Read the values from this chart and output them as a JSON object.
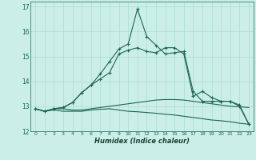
{
  "xlabel": "Humidex (Indice chaleur)",
  "background_color": "#cceee8",
  "grid_color": "#aaddcc",
  "line_color": "#1a6655",
  "x_values": [
    0,
    1,
    2,
    3,
    4,
    5,
    6,
    7,
    8,
    9,
    10,
    11,
    12,
    13,
    14,
    15,
    16,
    17,
    18,
    19,
    20,
    21,
    22,
    23
  ],
  "series": [
    {
      "y": [
        12.9,
        12.8,
        12.9,
        12.9,
        12.85,
        12.85,
        12.9,
        12.95,
        13.0,
        13.05,
        13.1,
        13.15,
        13.2,
        13.25,
        13.27,
        13.27,
        13.25,
        13.2,
        13.15,
        13.1,
        13.05,
        13.0,
        12.98,
        12.95
      ],
      "marker": false
    },
    {
      "y": [
        12.9,
        12.8,
        12.85,
        12.8,
        12.8,
        12.8,
        12.85,
        12.88,
        12.9,
        12.85,
        12.8,
        12.78,
        12.75,
        12.72,
        12.68,
        12.65,
        12.6,
        12.55,
        12.5,
        12.45,
        12.42,
        12.38,
        12.32,
        12.28
      ],
      "marker": false
    },
    {
      "y": [
        12.9,
        12.8,
        12.9,
        12.95,
        13.15,
        13.55,
        13.85,
        14.1,
        14.35,
        15.1,
        15.25,
        15.35,
        15.2,
        15.15,
        15.35,
        15.35,
        15.1,
        13.4,
        13.6,
        13.35,
        13.2,
        13.2,
        13.0,
        12.28
      ],
      "marker": true
    },
    {
      "y": [
        12.9,
        12.8,
        12.9,
        12.95,
        13.15,
        13.55,
        13.85,
        14.3,
        14.8,
        15.3,
        15.5,
        16.9,
        15.8,
        15.45,
        15.1,
        15.15,
        15.2,
        13.6,
        13.2,
        13.2,
        13.2,
        13.2,
        13.05,
        12.28
      ],
      "marker": true
    }
  ],
  "ylim": [
    12.0,
    17.2
  ],
  "yticks": [
    12,
    13,
    14,
    15,
    16,
    17
  ],
  "xticks": [
    0,
    1,
    2,
    3,
    4,
    5,
    6,
    7,
    8,
    9,
    10,
    11,
    12,
    13,
    14,
    15,
    16,
    17,
    18,
    19,
    20,
    21,
    22,
    23
  ]
}
